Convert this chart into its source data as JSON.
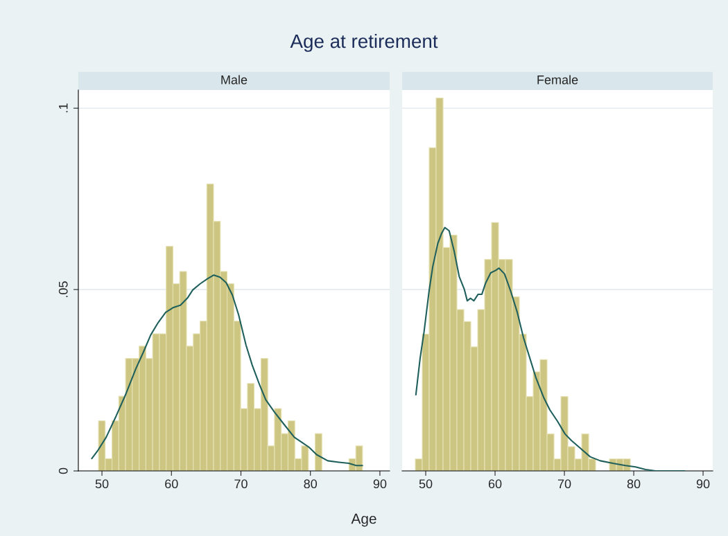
{
  "chart_data": [
    {
      "type": "histogram",
      "title": "Male",
      "xlabel": "Age",
      "annotations": [
        "Age at retirement"
      ],
      "color": "#cdc582",
      "bins": [
        49.5,
        50.47,
        51.45,
        52.42,
        53.4,
        54.37,
        55.35,
        56.32,
        57.29,
        58.27,
        59.24,
        60.22,
        61.19,
        62.17,
        63.14,
        64.12,
        65.09,
        66.06,
        67.04,
        68.01,
        68.99,
        69.96,
        70.94,
        71.91,
        72.88,
        73.86,
        74.83,
        75.81,
        76.78,
        77.76,
        78.73,
        79.71,
        80.68,
        81.65,
        82.63,
        83.6,
        84.58,
        85.55,
        86.53,
        87.5
      ],
      "values": [
        0.0138,
        0.0034,
        0.0138,
        0.0206,
        0.031,
        0.031,
        0.0344,
        0.031,
        0.0378,
        0.0378,
        0.0619,
        0.0516,
        0.055,
        0.0344,
        0.0378,
        0.0413,
        0.0791,
        0.0688,
        0.055,
        0.0516,
        0.0413,
        0.0172,
        0.0241,
        0.0172,
        0.031,
        0.0069,
        0.0172,
        0.0103,
        0.0138,
        0.0034,
        0.0069,
        0,
        0.0103,
        0,
        0,
        0,
        0,
        0.0034,
        0.0069
      ],
      "series": [
        {
          "type": "line",
          "color": "#1f5f5c",
          "x": [
            48.54,
            49.36,
            50.61,
            52.03,
            53.46,
            54.88,
            55.95,
            57.02,
            58.09,
            59.16,
            60.22,
            61.29,
            62.36,
            63.07,
            64.14,
            65.21,
            66.1,
            66.99,
            67.88,
            68.77,
            69.67,
            70.73,
            71.62,
            72.69,
            73.58,
            74.83,
            76.26,
            77.68,
            78.75,
            79.82,
            80.89,
            82.49,
            84.09,
            85.52,
            86.59,
            87.48
          ],
          "values": [
            0.0034,
            0.0055,
            0.0093,
            0.0151,
            0.0213,
            0.0282,
            0.0327,
            0.0375,
            0.0409,
            0.0437,
            0.045,
            0.0457,
            0.0478,
            0.0499,
            0.0516,
            0.053,
            0.054,
            0.0534,
            0.0519,
            0.0485,
            0.043,
            0.0347,
            0.0292,
            0.0237,
            0.0196,
            0.0162,
            0.0127,
            0.0093,
            0.0079,
            0.0065,
            0.0045,
            0.0028,
            0.0024,
            0.0021,
            0.0015,
            0.0015
          ]
        }
      ],
      "xlim": [
        46.6,
        91.4
      ],
      "ylim": [
        0,
        0.105
      ],
      "xticks": [
        50,
        60,
        70,
        80,
        90
      ],
      "yticks": [
        {
          "value": 0,
          "label": "0"
        },
        {
          "value": 0.05,
          "label": ".05"
        },
        {
          "value": 0.1,
          "label": ".1"
        }
      ],
      "grid": "y"
    },
    {
      "type": "histogram",
      "title": "Female",
      "color": "#cdc582",
      "tick_labels": "x",
      "bins": [
        48.5,
        49.5,
        50.5,
        51.5,
        52.5,
        53.5,
        54.5,
        55.5,
        56.5,
        57.5,
        58.5,
        59.5,
        60.5,
        61.5,
        62.5,
        63.5,
        64.5,
        65.5,
        66.5,
        67.5,
        68.5,
        69.5,
        70.5,
        71.5,
        72.5,
        73.5,
        74.5,
        75.5,
        76.5,
        77.5,
        78.5,
        79.5
      ],
      "values": [
        0.0033,
        0.0377,
        0.0891,
        0.1028,
        0.0616,
        0.065,
        0.0445,
        0.0412,
        0.0342,
        0.0445,
        0.0583,
        0.0685,
        0.0583,
        0.0583,
        0.048,
        0.0377,
        0.0205,
        0.0273,
        0.0307,
        0.0102,
        0.0033,
        0.0205,
        0.0067,
        0.0033,
        0.0102,
        0.0033,
        0,
        0,
        0.0033,
        0.0033,
        0.0033
      ],
      "series": [
        {
          "type": "line",
          "color": "#1f5f5c",
          "x": [
            48.58,
            49.2,
            49.75,
            50.47,
            51.02,
            51.74,
            52.29,
            52.76,
            53.38,
            54.1,
            54.83,
            55.56,
            55.99,
            56.47,
            56.94,
            57.56,
            58.1,
            58.64,
            59.37,
            60.1,
            60.57,
            61.37,
            62.28,
            63.19,
            64.09,
            65.0,
            65.91,
            67.0,
            67.91,
            69.0,
            70.09,
            71.0,
            72.27,
            73.72,
            75.17,
            76.99,
            78.8,
            80.26,
            81.71,
            83.16,
            87.34
          ],
          "values": [
            0.021,
            0.0312,
            0.0382,
            0.0494,
            0.0564,
            0.0627,
            0.0655,
            0.0671,
            0.0662,
            0.0606,
            0.0536,
            0.0501,
            0.0469,
            0.0476,
            0.0469,
            0.0487,
            0.0487,
            0.0518,
            0.0546,
            0.0553,
            0.0559,
            0.0543,
            0.0494,
            0.0438,
            0.0368,
            0.0312,
            0.0256,
            0.0203,
            0.0168,
            0.0137,
            0.0102,
            0.0084,
            0.0063,
            0.0039,
            0.0028,
            0.0021,
            0.0015,
            0.0011,
            0.0004,
            0,
            0
          ]
        }
      ],
      "xlim": [
        46.6,
        91.4
      ],
      "ylim": [
        0,
        0.105
      ],
      "xticks": [
        50,
        60,
        70,
        80,
        90
      ],
      "yticks": [
        {
          "value": 0,
          "label": null
        },
        {
          "value": 0.05,
          "label": null
        },
        {
          "value": 0.1,
          "label": null
        }
      ],
      "grid": "y"
    }
  ]
}
